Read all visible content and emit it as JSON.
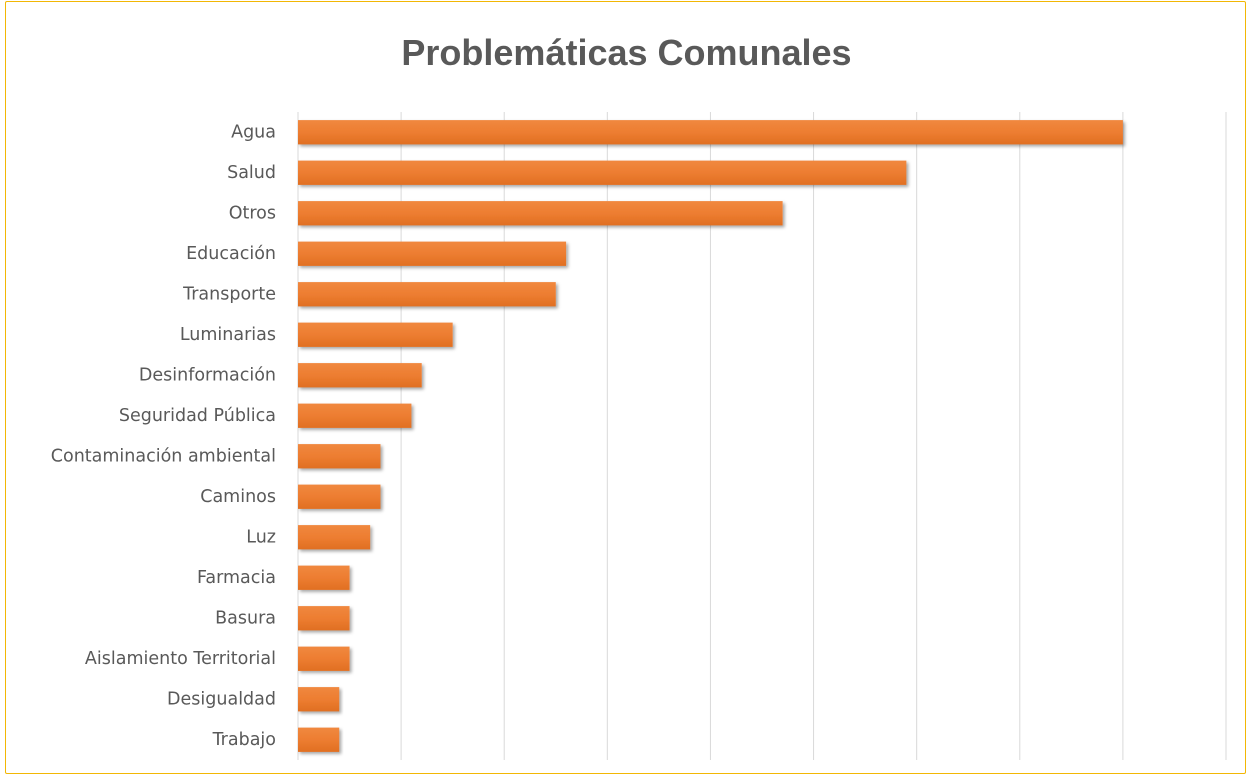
{
  "chart_data": {
    "type": "bar",
    "orientation": "horizontal",
    "title": "Problemáticas Comunales",
    "xlabel": "",
    "ylabel": "",
    "categories": [
      "Agua",
      "Salud",
      "Otros",
      "Educación",
      "Transporte",
      "Luminarias",
      "Desinformación",
      "Seguridad Pública",
      "Contaminación ambiental",
      "Caminos",
      "Luz",
      "Farmacia",
      "Basura",
      "Aislamiento Territorial",
      "Desigualdad",
      "Trabajo"
    ],
    "values": [
      80,
      59,
      47,
      26,
      25,
      15,
      12,
      11,
      8,
      8,
      7,
      5,
      5,
      5,
      4,
      4
    ],
    "xlim": [
      0,
      90
    ],
    "grid_interval": 10,
    "grid": true,
    "tick_labels_shown": false,
    "legend": "none",
    "bar_color": "#ed7d31",
    "grid_color": "#d9d9d9",
    "border_color": "#f2b705"
  }
}
